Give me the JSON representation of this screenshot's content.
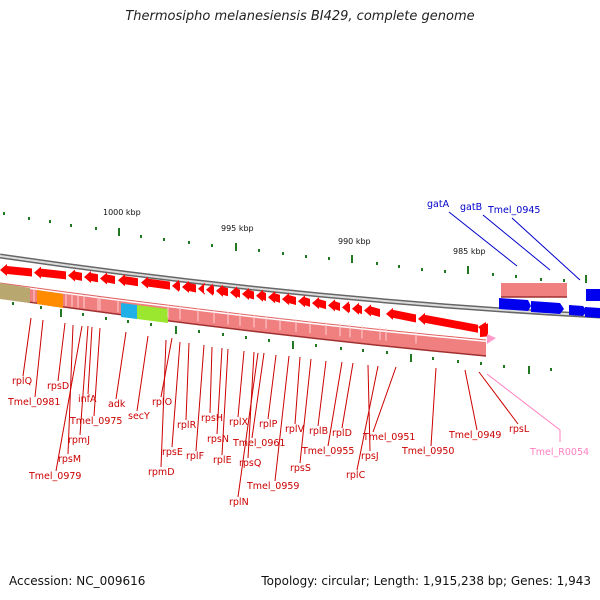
{
  "title": "Thermosipho melanesiensis BI429, complete genome",
  "footer": {
    "accession": "Accession: NC_009616",
    "topology": "Topology: circular; Length: 1,915,238 bp; Genes: 1,943"
  },
  "scale_labels": [
    "1000 kbp",
    "995 kbp",
    "990 kbp",
    "985 kbp"
  ],
  "colors": {
    "gene_red": "#ff0000",
    "gene_blue": "#0000ee",
    "band_pink": "#f08080",
    "label_red": "#cc0000",
    "label_blue": "#0000cc",
    "label_pink": "#ff80c0",
    "tick_green": "#227722"
  },
  "top_labels": [
    "gatA",
    "gatB",
    "Tmel_0945"
  ],
  "gene_labels": [
    "rplQ",
    "Tmel_0981",
    "rpsD",
    "infA",
    "Tmel_0975",
    "rpmJ",
    "rpsM",
    "Tmel_0979",
    "adk",
    "secY",
    "rplO",
    "rpmD",
    "rpsE",
    "rplR",
    "rplF",
    "rpsH",
    "rpsN",
    "rplE",
    "rplX",
    "rpsQ",
    "Tmel_0961",
    "rplN",
    "rplP",
    "Tmel_0959",
    "rplV",
    "rpsS",
    "rplB",
    "Tmel_0955",
    "rplD",
    "rpsJ",
    "rplC",
    "Tmel_0951",
    "Tmel_0950",
    "Tmel_0949",
    "rpsL",
    "Tmel_R0054"
  ]
}
